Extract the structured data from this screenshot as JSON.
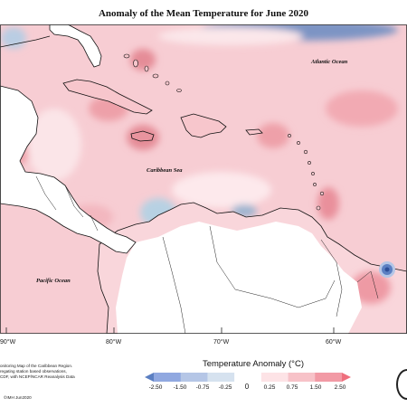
{
  "title": "Anomaly of the Mean Temperature for June 2020",
  "map_labels": {
    "atlantic": "Atlantic Ocean",
    "caribbean": "Caribbean Sea",
    "pacific": "Pacific Ocean"
  },
  "longitude_labels": [
    "90°W",
    "80°W",
    "70°W",
    "60°W"
  ],
  "credits": {
    "line1": "onitoring Map of the Caribbean Region.",
    "line2": "regating station based observations,",
    "line3": "CDF, with NCEP/NCAR Reanalysis Data",
    "copyright": "©IMH Jun2020"
  },
  "legend": {
    "title": "Temperature Anomaly (°C)",
    "labels": [
      "-2.50",
      "-1.50",
      "-0.75",
      "-0.25",
      "0",
      "0.25",
      "0.75",
      "1.50",
      "2.50"
    ],
    "colors": [
      "#5b7fc2",
      "#90a8e0",
      "#b5c6e6",
      "#d6e2ef",
      "#ffffff",
      "#fde3e6",
      "#f7c2c8",
      "#f29aa5",
      "#ee6f7d"
    ]
  },
  "colors": {
    "ocean_warm": "#f7cdd3",
    "warm_spot": "#eea0a9",
    "hot_spot": "#e07b87",
    "cool_spot": "#c5d8e6",
    "cold_spot": "#5a75b4",
    "land": "#ffffff",
    "coast": "#111111"
  }
}
